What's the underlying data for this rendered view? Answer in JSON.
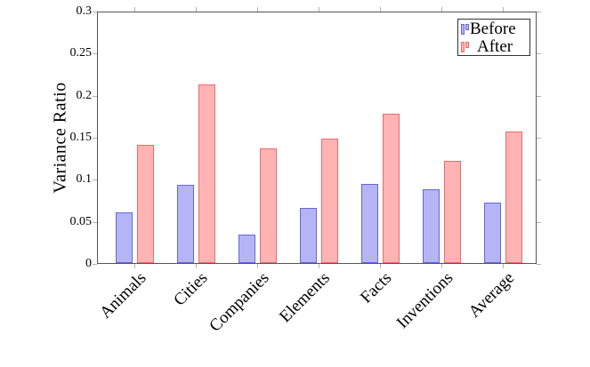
{
  "chart_data": {
    "type": "bar",
    "title": "",
    "xlabel": "",
    "ylabel": "Variance Ratio",
    "categories": [
      "Animals",
      "Cities",
      "Companies",
      "Elements",
      "Facts",
      "Inventions",
      "Average"
    ],
    "series": [
      {
        "name": "Before",
        "fill": "#b5b5f6",
        "border": "#6565e0",
        "values": [
          0.06,
          0.093,
          0.034,
          0.065,
          0.094,
          0.088,
          0.072
        ]
      },
      {
        "name": "After",
        "fill": "#ffb3b3",
        "border": "#ee6a6a",
        "values": [
          0.14,
          0.212,
          0.136,
          0.148,
          0.177,
          0.122,
          0.156
        ]
      }
    ],
    "ylim": [
      0,
      0.3
    ],
    "yticks": {
      "values": [
        0,
        0.05,
        0.1,
        0.15,
        0.2,
        0.25,
        0.3
      ],
      "labels": [
        "0",
        "0.05",
        "0.1",
        "0.15",
        "0.2",
        "0.25",
        "0.3"
      ]
    },
    "grid": false,
    "legend_position": "top-right"
  }
}
